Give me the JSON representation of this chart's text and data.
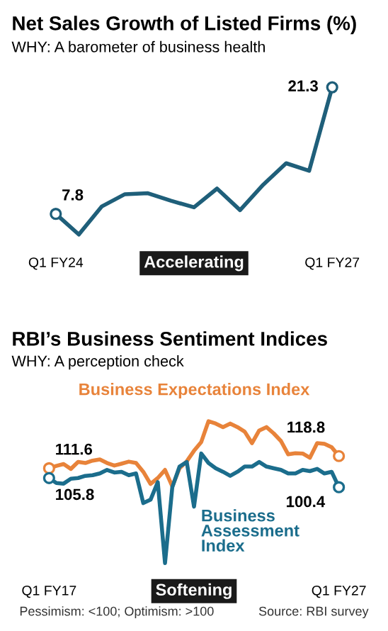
{
  "chart_data": [
    {
      "type": "line",
      "title": "Net Sales Growth of Listed Firms (%)",
      "subtitle": "WHY: A barometer of business health",
      "categories": [
        "Q1 FY24",
        null,
        null,
        null,
        null,
        null,
        null,
        null,
        null,
        null,
        null,
        null,
        "Q1 FY27"
      ],
      "series": [
        {
          "color": "#1f5f7a",
          "values": [
            7.8,
            5.6,
            8.6,
            9.9,
            10.0,
            9.2,
            8.5,
            10.5,
            8.2,
            10.9,
            13.2,
            12.4,
            21.3
          ],
          "value_labels": [
            "7.8",
            null,
            null,
            null,
            null,
            null,
            null,
            null,
            null,
            null,
            null,
            null,
            "21.3"
          ]
        }
      ],
      "annotations": [
        "Accelerating"
      ],
      "grid": false,
      "legend": false
    },
    {
      "type": "line",
      "title": "RBI’s Business Sentiment Indices",
      "subtitle": "WHY: A perception check",
      "categories": [
        "Q1 FY17",
        null,
        null,
        null,
        null,
        null,
        null,
        null,
        null,
        null,
        null,
        null,
        null,
        null,
        null,
        null,
        null,
        null,
        null,
        null,
        null,
        null,
        null,
        null,
        null,
        null,
        null,
        null,
        null,
        null,
        null,
        null,
        null,
        null,
        null,
        null,
        null,
        null,
        null,
        null,
        "Q1 FY27"
      ],
      "series": [
        {
          "name": "Business Expectations Index",
          "color": "#e8833a",
          "values": [
            111.6,
            113.0,
            114.1,
            111.2,
            115.3,
            114.7,
            116.1,
            116.8,
            114.7,
            113.2,
            114.3,
            115.5,
            114.7,
            109.5,
            102.3,
            105.8,
            110.6,
            100.9,
            111.6,
            115.7,
            121.9,
            127.1,
            139.4,
            138.0,
            135.9,
            138.0,
            135.9,
            133.2,
            126.4,
            133.9,
            135.9,
            132.2,
            127.7,
            119.8,
            120.5,
            120.3,
            117.8,
            126.4,
            126.0,
            124.0,
            118.8
          ],
          "value_labels": [
            "111.6",
            null,
            null,
            null,
            null,
            null,
            null,
            null,
            null,
            null,
            null,
            null,
            null,
            null,
            null,
            null,
            null,
            null,
            null,
            null,
            null,
            null,
            null,
            null,
            null,
            null,
            null,
            null,
            null,
            null,
            null,
            null,
            null,
            null,
            null,
            null,
            null,
            null,
            null,
            null,
            "118.8"
          ]
        },
        {
          "name": "Business Assessment Index",
          "color": "#1b6d8c",
          "values": [
            105.8,
            102.9,
            102.5,
            105.4,
            105.8,
            107.1,
            107.5,
            108.5,
            110.6,
            109.1,
            109.5,
            107.5,
            108.5,
            91.0,
            93.0,
            103.4,
            55.5,
            100.3,
            112.6,
            115.3,
            88.9,
            120.3,
            114.7,
            111.6,
            109.5,
            107.1,
            109.5,
            112.6,
            112.6,
            115.3,
            112.6,
            111.6,
            110.6,
            108.5,
            108.5,
            110.6,
            109.9,
            111.2,
            108.5,
            109.5,
            100.4
          ],
          "value_labels": [
            "105.8",
            null,
            null,
            null,
            null,
            null,
            null,
            null,
            null,
            null,
            null,
            null,
            null,
            null,
            null,
            null,
            null,
            null,
            null,
            null,
            null,
            null,
            null,
            null,
            null,
            null,
            null,
            null,
            null,
            null,
            null,
            null,
            null,
            null,
            null,
            null,
            null,
            null,
            null,
            null,
            "100.4"
          ]
        }
      ],
      "annotations": [
        "Softening",
        "Pessimism: <100; Optimism: >100",
        "Source: RBI survey"
      ],
      "grid": false,
      "legend": false
    }
  ]
}
